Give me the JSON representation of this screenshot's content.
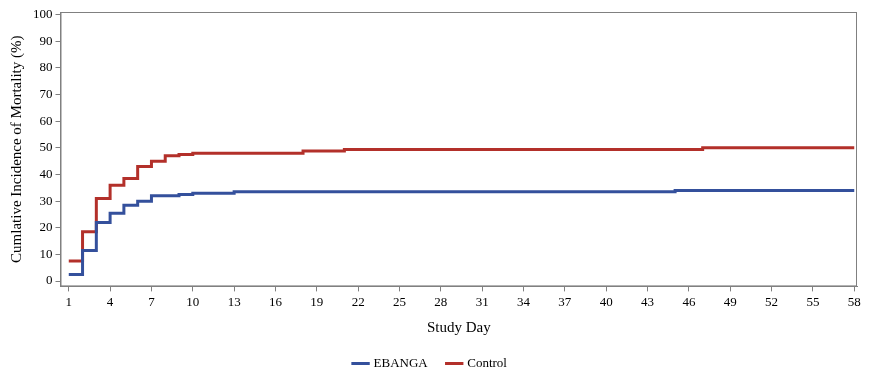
{
  "chart_data": {
    "type": "line",
    "x_label": "Study Day",
    "y_label": "Cumlative Incidence of Mortality (%)",
    "xlim": [
      0.4,
      58.2
    ],
    "xticks": [
      1,
      4,
      7,
      10,
      13,
      16,
      19,
      22,
      25,
      28,
      31,
      34,
      37,
      40,
      43,
      46,
      49,
      52,
      55,
      58
    ],
    "ylim": [
      -2,
      101
    ],
    "yticks": [
      0,
      10,
      20,
      30,
      40,
      50,
      60,
      70,
      80,
      90,
      100
    ],
    "grid": false,
    "legend": "bottom",
    "line_style": "step",
    "marker": "none",
    "series": [
      {
        "name": "EBANGA",
        "color": "#34509c",
        "x": [
          1,
          2,
          3,
          4,
          5,
          6,
          7,
          9,
          10,
          13,
          45,
          58
        ],
        "values": [
          2.5,
          11.5,
          22,
          25.5,
          28.5,
          30,
          32,
          32.5,
          33,
          33.5,
          34,
          34
        ]
      },
      {
        "name": "Control",
        "color": "#b3302a",
        "x": [
          1,
          2,
          3,
          4,
          5,
          6,
          7,
          8,
          9,
          10,
          18,
          21,
          47,
          58
        ],
        "values": [
          7.5,
          18.5,
          31,
          36,
          38.5,
          43,
          45,
          47,
          47.5,
          48,
          48.8,
          49.4,
          50,
          50
        ]
      }
    ]
  }
}
